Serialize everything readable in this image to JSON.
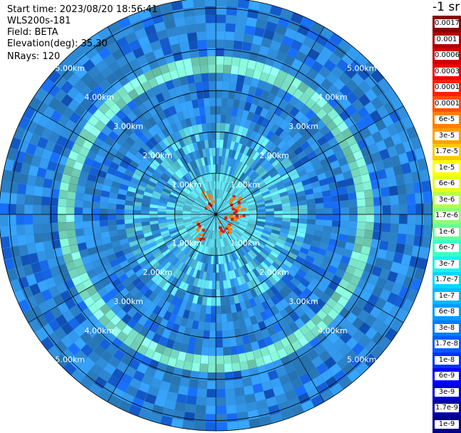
{
  "info": {
    "start_time": "Start time: 2023/08/20 18:56:41",
    "device": "WLS200s-181",
    "field": "Field: BETA",
    "elevation": "Elevation(deg): 35.30",
    "nrays": "NRays: 120"
  },
  "colorbar": {
    "unit": "-1 sr",
    "entries": [
      {
        "label": "0.0017",
        "color": "#8b0000"
      },
      {
        "label": "0.001",
        "color": "#b00000"
      },
      {
        "label": "0.0006",
        "color": "#d00000"
      },
      {
        "label": "0.0003",
        "color": "#f00000"
      },
      {
        "label": "0.00017",
        "color": "#ff2000"
      },
      {
        "label": "0.0001",
        "color": "#ff5000"
      },
      {
        "label": "6e-5",
        "color": "#ff8000"
      },
      {
        "label": "3e-5",
        "color": "#ffa000"
      },
      {
        "label": "1.7e-5",
        "color": "#ffc800"
      },
      {
        "label": "1e-5",
        "color": "#ffff00"
      },
      {
        "label": "6e-6",
        "color": "#e6ff1a"
      },
      {
        "label": "3e-6",
        "color": "#b4ff4b"
      },
      {
        "label": "1.7e-6",
        "color": "#8cff73"
      },
      {
        "label": "1e-6",
        "color": "#64ff9b"
      },
      {
        "label": "6e-7",
        "color": "#3cffc3"
      },
      {
        "label": "3e-7",
        "color": "#14f5eb"
      },
      {
        "label": "1.7e-7",
        "color": "#00d7ff"
      },
      {
        "label": "1e-7",
        "color": "#00b9ff"
      },
      {
        "label": "6e-8",
        "color": "#009bff"
      },
      {
        "label": "3e-8",
        "color": "#007dff"
      },
      {
        "label": "1.7e-8",
        "color": "#005aff"
      },
      {
        "label": "1e-8",
        "color": "#0032ff"
      },
      {
        "label": "6e-9",
        "color": "#0000ff"
      },
      {
        "label": "3e-9",
        "color": "#0000d2"
      },
      {
        "label": "1.7e-9",
        "color": "#0000aa"
      },
      {
        "label": "1e-9",
        "color": "#000082"
      }
    ]
  },
  "chart_data": {
    "type": "heatmap",
    "projection": "polar PPI scan",
    "range_rings_km": [
      1,
      2,
      3,
      4,
      5
    ],
    "max_range_km": 5.25,
    "ring_labels": [
      "1.00km",
      "2.00km",
      "3.00km",
      "4.00km",
      "5.00km"
    ],
    "rays": 120,
    "colors": {
      "background_field": "#2f8cd8",
      "low_field": "#1560d8",
      "near_field": "#60d8e8",
      "ring_field": "#7fe8c8",
      "aerosol_hotspot": "#ff7f00",
      "hotspot_core": "#d81818"
    },
    "hotspots": [
      {
        "range_km": 0.55,
        "azimuth_deg": 55,
        "level": "1.7e-5"
      },
      {
        "range_km": 0.55,
        "azimuth_deg": 75,
        "level": "6e-5"
      },
      {
        "range_km": 0.45,
        "azimuth_deg": 95,
        "level": "3e-5"
      },
      {
        "range_km": 0.4,
        "azimuth_deg": 120,
        "level": "1.7e-5"
      },
      {
        "range_km": 0.5,
        "azimuth_deg": 225,
        "level": "1.7e-5"
      },
      {
        "range_km": 0.3,
        "azimuth_deg": 140,
        "level": "6e-6"
      },
      {
        "range_km": 0.45,
        "azimuth_deg": 330,
        "level": "6e-6"
      }
    ]
  }
}
